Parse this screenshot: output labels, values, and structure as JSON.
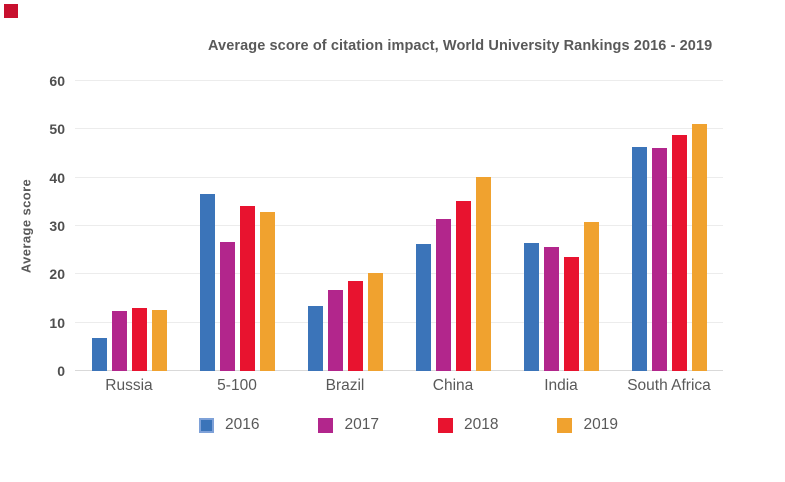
{
  "decor": {
    "corner_square_color": "#C8102E"
  },
  "chart_data": {
    "type": "bar",
    "title": "Average score of citation impact, World University Rankings 2016 - 2019",
    "xlabel": "",
    "ylabel": "Average score",
    "ylim": [
      0,
      60
    ],
    "yticks": [
      0,
      10,
      20,
      30,
      40,
      50,
      60
    ],
    "grid": true,
    "legend_position": "bottom",
    "categories": [
      "Russia",
      "5-100",
      "Brazil",
      "China",
      "India",
      "South Africa"
    ],
    "series": [
      {
        "name": "2016",
        "color": "#3B74B9",
        "swatch_border": "#7EA1D8",
        "values": [
          6.8,
          36.7,
          13.5,
          26.2,
          26.4,
          46.4
        ]
      },
      {
        "name": "2017",
        "color": "#B2268C",
        "values": [
          12.4,
          26.6,
          16.8,
          31.4,
          25.7,
          46.1
        ]
      },
      {
        "name": "2018",
        "color": "#E8132F",
        "values": [
          13.0,
          34.2,
          18.6,
          35.2,
          23.6,
          48.9
        ]
      },
      {
        "name": "2019",
        "color": "#F0A22F",
        "values": [
          12.6,
          32.9,
          20.2,
          40.2,
          30.8,
          51.2
        ]
      }
    ],
    "colors": {
      "grid": "#ececec",
      "axis": "#d9d9d9",
      "text": "#595959"
    }
  }
}
